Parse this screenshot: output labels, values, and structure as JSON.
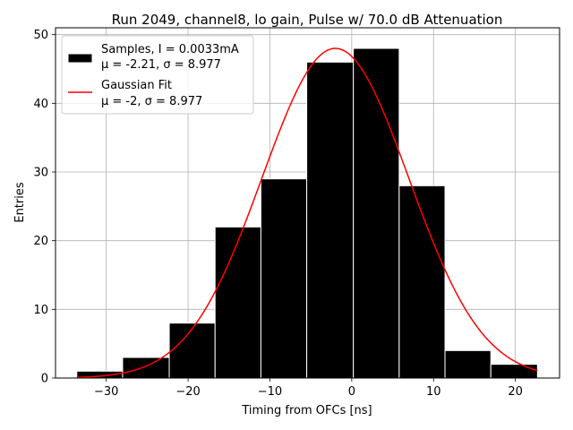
{
  "chart_data": {
    "type": "bar",
    "title": "Run 2049, channel8, lo gain, Pulse w/ 70.0 dB Attenuation",
    "xlabel": "Timing from OFCs [ns]",
    "ylabel": "Entries",
    "xlim": [
      -36.2,
      25.4
    ],
    "ylim": [
      0,
      51
    ],
    "grid": true,
    "legend_position": "top-left",
    "xticks": [
      -30,
      -20,
      -10,
      0,
      10,
      20
    ],
    "xtick_labels": [
      "−30",
      "−20",
      "−10",
      "0",
      "10",
      "20"
    ],
    "yticks": [
      0,
      10,
      20,
      30,
      40,
      50
    ],
    "ytick_labels": [
      "0",
      "10",
      "20",
      "30",
      "40",
      "50"
    ],
    "bins": [
      {
        "from": -33.6,
        "to": -28.0,
        "count": 1
      },
      {
        "from": -28.0,
        "to": -22.3,
        "count": 3
      },
      {
        "from": -22.3,
        "to": -16.7,
        "count": 8
      },
      {
        "from": -16.7,
        "to": -11.1,
        "count": 22
      },
      {
        "from": -11.1,
        "to": -5.5,
        "count": 29
      },
      {
        "from": -5.5,
        "to": 0.2,
        "count": 46
      },
      {
        "from": 0.2,
        "to": 5.8,
        "count": 48
      },
      {
        "from": 5.8,
        "to": 11.4,
        "count": 28
      },
      {
        "from": 11.4,
        "to": 17.0,
        "count": 4
      },
      {
        "from": 17.0,
        "to": 22.7,
        "count": 2
      }
    ],
    "fit": {
      "type": "gaussian",
      "mu": -2,
      "sigma": 8.977,
      "amplitude": 48,
      "x_range": [
        -33.6,
        22.7
      ]
    },
    "series": [
      {
        "kind": "histogram",
        "color": "#000000",
        "label_line1": "Samples, I = 0.0033mA",
        "label_line2": "μ = -2.21, σ = 8.977"
      },
      {
        "kind": "line",
        "color": "#ff0000",
        "label_line1": "Gaussian Fit",
        "label_line2": "μ = -2, σ = 8.977"
      }
    ]
  }
}
